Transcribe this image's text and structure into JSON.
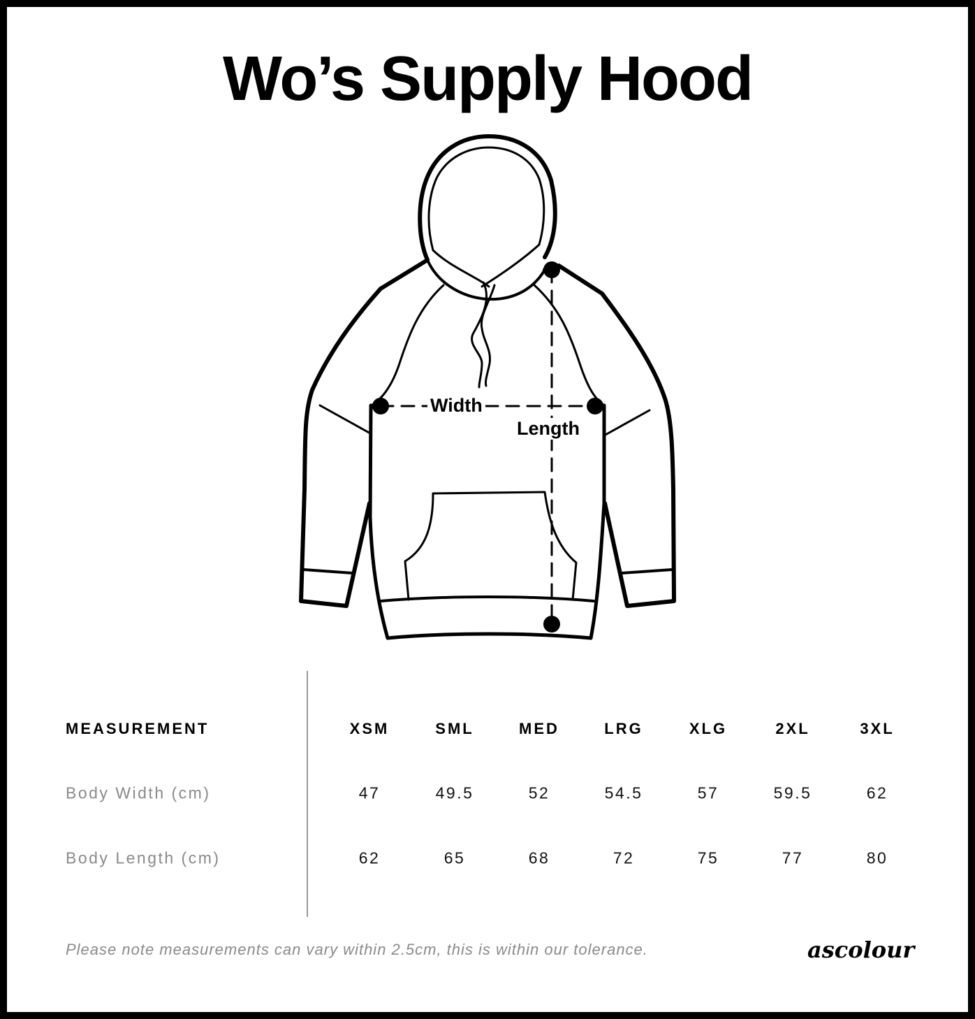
{
  "title": "Wo’s Supply Hood",
  "diagram": {
    "width_label": "Width",
    "length_label": "Length"
  },
  "table": {
    "header": "MEASUREMENT",
    "sizes": [
      "XSM",
      "SML",
      "MED",
      "LRG",
      "XLG",
      "2XL",
      "3XL"
    ],
    "rows": [
      {
        "label": "Body Width (cm)",
        "values": [
          "47",
          "49.5",
          "52",
          "54.5",
          "57",
          "59.5",
          "62"
        ]
      },
      {
        "label": "Body Length (cm)",
        "values": [
          "62",
          "65",
          "68",
          "72",
          "75",
          "77",
          "80"
        ]
      }
    ]
  },
  "note": "Please note measurements can vary within 2.5cm, this is within our tolerance.",
  "logo": "ascolour"
}
